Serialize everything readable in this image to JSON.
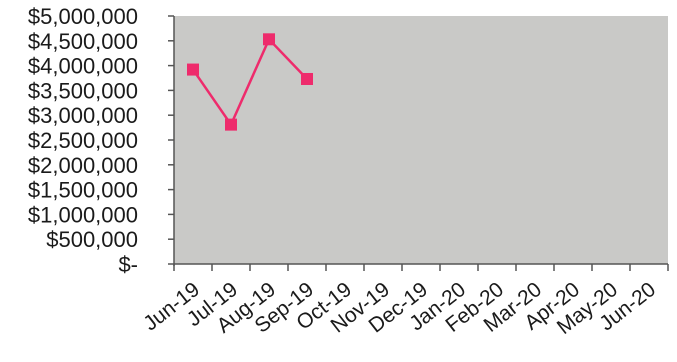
{
  "chart_data": {
    "type": "line",
    "title": "",
    "xlabel": "",
    "ylabel": "",
    "categories": [
      "Jun-19",
      "Jul-19",
      "Aug-19",
      "Sep-19",
      "Oct-19",
      "Nov-19",
      "Dec-19",
      "Jan-20",
      "Feb-20",
      "Mar-20",
      "Apr-20",
      "May-20",
      "Jun-20"
    ],
    "series": [
      {
        "values": [
          3920000,
          2810000,
          4530000,
          3730000,
          null,
          null,
          null,
          null,
          null,
          null,
          null,
          null,
          null
        ]
      }
    ],
    "y_ticks": [
      "$5,000,000",
      "$4,500,000",
      "$4,000,000",
      "$3,500,000",
      "$3,000,000",
      "$2,500,000",
      "$2,000,000",
      "$1,500,000",
      "$1,000,000",
      "$500,000",
      "$-"
    ],
    "ylim": [
      0,
      5000000
    ],
    "grid": false,
    "legend": "none",
    "colors": {
      "series": "#ee2b6c",
      "plot_area": "#c9c9c7",
      "axis": "#555555"
    }
  }
}
